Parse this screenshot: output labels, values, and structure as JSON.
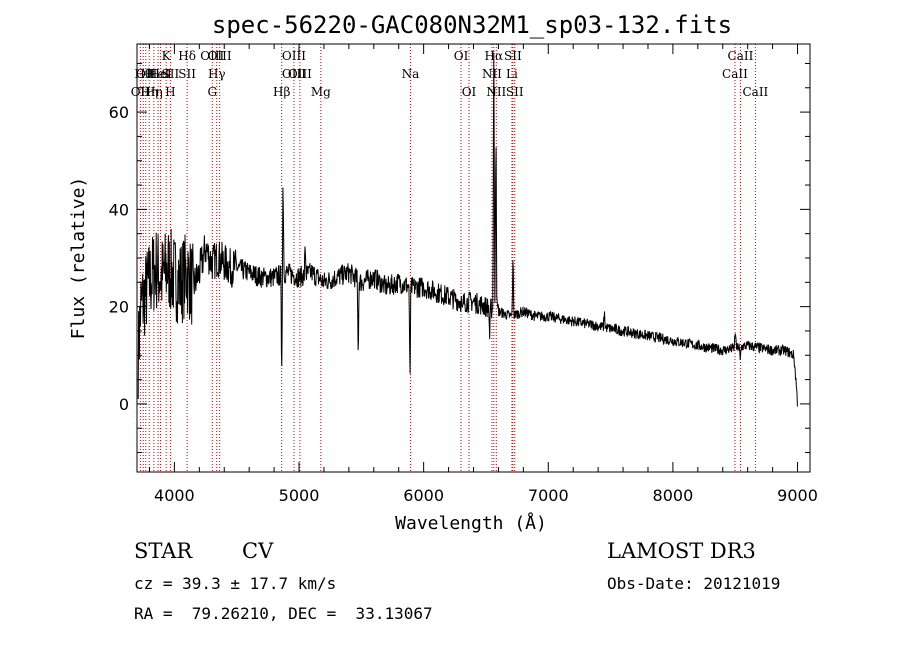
{
  "chart_data": {
    "type": "line",
    "title": "spec-56220-GAC080N32M1_sp03-132.fits",
    "xlabel": "Wavelength (Å)",
    "ylabel": "Flux (relative)",
    "xlim": [
      3700,
      9100
    ],
    "ylim": [
      -14,
      74
    ],
    "xticks": [
      4000,
      5000,
      6000,
      7000,
      8000,
      9000
    ],
    "yticks": [
      0,
      20,
      40,
      60
    ],
    "xtick_labels": [
      "4000",
      "5000",
      "6000",
      "7000",
      "8000",
      "9000"
    ],
    "ytick_labels": [
      "0",
      "20",
      "40",
      "60"
    ],
    "line_color": "#000000",
    "marker_color": "#cc0000",
    "spectrum_anchors": {
      "wavelength": [
        3710,
        3730,
        3760,
        3800,
        3850,
        3900,
        3950,
        4000,
        4050,
        4100,
        4150,
        4200,
        4250,
        4300,
        4350,
        4400,
        4450,
        4500,
        4600,
        4700,
        4800,
        4900,
        5000,
        5100,
        5200,
        5300,
        5400,
        5500,
        5600,
        5700,
        5800,
        5900,
        6000,
        6100,
        6200,
        6300,
        6400,
        6500,
        6600,
        6700,
        6800,
        6900,
        7000,
        7200,
        7400,
        7600,
        7800,
        8000,
        8200,
        8400,
        8600,
        8800,
        8900,
        8970,
        8990,
        9000
      ],
      "flux": [
        10,
        20,
        22,
        25,
        28,
        26,
        28,
        26,
        25,
        27,
        24,
        27,
        32,
        29,
        30,
        29,
        28,
        28,
        27,
        26,
        26,
        27,
        26,
        27,
        25,
        26,
        27,
        25,
        26,
        24,
        25,
        24,
        24,
        23,
        22,
        21,
        21,
        20,
        19,
        18,
        19,
        18,
        18,
        17,
        16,
        15,
        14,
        13,
        12,
        11,
        12,
        11,
        11,
        10,
        4,
        0
      ]
    },
    "features": [
      {
        "wavelength": 4861,
        "depth": -20
      },
      {
        "wavelength": 4872,
        "depth": 20
      },
      {
        "wavelength": 5050,
        "depth": 6
      },
      {
        "wavelength": 5475,
        "depth": -15
      },
      {
        "wavelength": 5890,
        "depth": -20
      },
      {
        "wavelength": 6310,
        "depth": -3
      },
      {
        "wavelength": 6530,
        "depth": -6
      },
      {
        "wavelength": 6563,
        "depth": 54
      },
      {
        "wavelength": 6580,
        "depth": 40
      },
      {
        "wavelength": 6717,
        "depth": 12
      },
      {
        "wavelength": 7450,
        "depth": 3
      },
      {
        "wavelength": 8500,
        "depth": 4
      },
      {
        "wavelength": 8540,
        "depth": -3
      }
    ],
    "lines": [
      {
        "wavelength": 3727,
        "labels": [
          {
            "text": "OII",
            "row": 2
          }
        ]
      },
      {
        "wavelength": 3750,
        "labels": [
          {
            "text": "Hθ",
            "row": 1
          }
        ]
      },
      {
        "wavelength": 3770,
        "labels": [
          {
            "text": "OII",
            "row": 1
          }
        ]
      },
      {
        "wavelength": 3798,
        "labels": [
          {
            "text": "Hη",
            "row": 2
          }
        ]
      },
      {
        "wavelength": 3835,
        "labels": [
          {
            "text": "Hη",
            "row": 2
          }
        ]
      },
      {
        "wavelength": 3869,
        "labels": [
          {
            "text": "HeI",
            "row": 1
          }
        ]
      },
      {
        "wavelength": 3889,
        "labels": [
          {
            "text": "HeI",
            "row": 1
          }
        ]
      },
      {
        "wavelength": 3934,
        "labels": [
          {
            "text": "K",
            "row": 0
          }
        ]
      },
      {
        "wavelength": 3968,
        "labels": [
          {
            "text": "SII",
            "row": 1
          },
          {
            "text": "H",
            "row": 2
          }
        ]
      },
      {
        "wavelength": 4102,
        "labels": [
          {
            "text": "Hδ",
            "row": 0
          },
          {
            "text": "SII",
            "row": 1
          }
        ]
      },
      {
        "wavelength": 4304,
        "labels": [
          {
            "text": "OIII",
            "row": 0
          },
          {
            "text": "G",
            "row": 2
          }
        ]
      },
      {
        "wavelength": 4340,
        "labels": [
          {
            "text": "Hγ",
            "row": 1
          }
        ]
      },
      {
        "wavelength": 4363,
        "labels": [
          {
            "text": "OIII",
            "row": 0
          }
        ]
      },
      {
        "wavelength": 4861,
        "labels": [
          {
            "text": "Hβ",
            "row": 2
          }
        ]
      },
      {
        "wavelength": 4959,
        "labels": [
          {
            "text": "OIII",
            "row": 0
          },
          {
            "text": "OIII",
            "row": 1
          }
        ]
      },
      {
        "wavelength": 5007,
        "labels": [
          {
            "text": "OIII",
            "row": 1
          }
        ]
      },
      {
        "wavelength": 5175,
        "labels": [
          {
            "text": "Mg",
            "row": 2
          }
        ]
      },
      {
        "wavelength": 5894,
        "labels": [
          {
            "text": "Na",
            "row": 1
          }
        ]
      },
      {
        "wavelength": 6300,
        "labels": [
          {
            "text": "OI",
            "row": 0
          }
        ]
      },
      {
        "wavelength": 6364,
        "labels": [
          {
            "text": "OI",
            "row": 2
          }
        ]
      },
      {
        "wavelength": 6548,
        "labels": [
          {
            "text": "NII",
            "row": 1
          }
        ]
      },
      {
        "wavelength": 6563,
        "labels": [
          {
            "text": "Hα",
            "row": 0
          }
        ]
      },
      {
        "wavelength": 6583,
        "labels": [
          {
            "text": "NII",
            "row": 2
          }
        ]
      },
      {
        "wavelength": 6708,
        "labels": [
          {
            "text": "Li",
            "row": 1
          }
        ]
      },
      {
        "wavelength": 6716,
        "labels": [
          {
            "text": "SII",
            "row": 0
          }
        ]
      },
      {
        "wavelength": 6731,
        "labels": [
          {
            "text": "SII",
            "row": 2
          }
        ]
      },
      {
        "wavelength": 8498,
        "labels": [
          {
            "text": "CaII",
            "row": 1
          }
        ]
      },
      {
        "wavelength": 8542,
        "labels": [
          {
            "text": "CaII",
            "row": 0
          }
        ]
      },
      {
        "wavelength": 8662,
        "labels": [
          {
            "text": "CaII",
            "row": 2
          }
        ]
      }
    ]
  },
  "info": {
    "class_text": "STAR",
    "subclass_text": "CV",
    "cz_text": "cz = 39.3 ± 17.7 km/s",
    "radec_text": "RA =  79.26210, DEC =  33.13067",
    "survey_text": "LAMOST DR3",
    "obs_date_text": "Obs-Date: 20121019"
  }
}
